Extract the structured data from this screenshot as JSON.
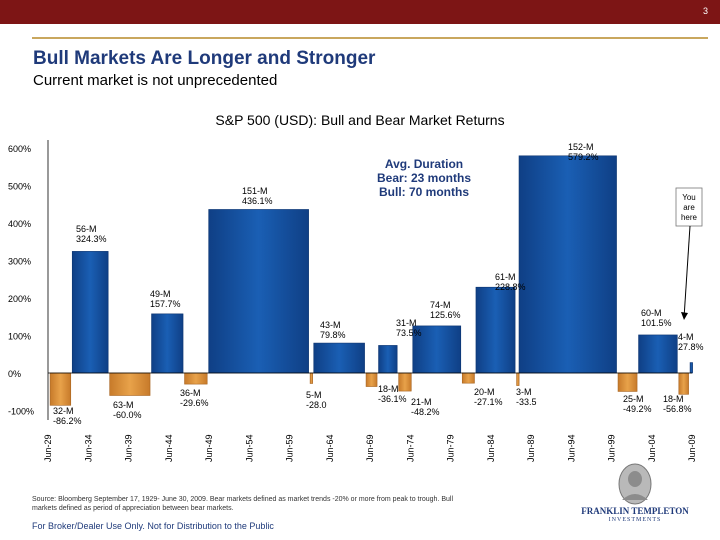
{
  "page_number": "3",
  "title": "Bull Markets Are Longer and Stronger",
  "subtitle": "Current market is not unprecedented",
  "source_note": "Source: Bloomberg September 17, 1929- June 30, 2009. Bear markets defined as market trends -20% or more from peak to trough. Bull markets defined as period of appreciation between bear markets.",
  "footer": "For Broker/Dealer Use Only. Not for Distribution to the Public",
  "logo": {
    "name": "FRANKLIN TEMPLETON",
    "sub": "INVESTMENTS"
  },
  "colors": {
    "bull": "#1a5fb4",
    "bear": "#e8a24a",
    "header": "#7d1515",
    "accent": "#c9a75e"
  },
  "chart_data": {
    "type": "bar",
    "title": "S&P 500 (USD): Bull and Bear Market Returns",
    "ylim": [
      -100,
      600
    ],
    "y_ticks": [
      -100,
      0,
      100,
      200,
      300,
      400,
      500,
      600
    ],
    "y_tick_labels": [
      "-100%",
      "0%",
      "100%",
      "200%",
      "300%",
      "400%",
      "500%",
      "600%"
    ],
    "x_ticks": [
      "Jun-29",
      "Jun-34",
      "Jun-39",
      "Jun-44",
      "Jun-49",
      "Jun-54",
      "Jun-59",
      "Jun-64",
      "Jun-69",
      "Jun-74",
      "Jun-79",
      "Jun-84",
      "Jun-89",
      "Jun-94",
      "Jun-99",
      "Jun-04",
      "Jun-09"
    ],
    "x_range": [
      1929.5,
      2009.5
    ],
    "avg_duration": {
      "line1": "Avg. Duration",
      "line2": "Bear: 23 months",
      "line3": "Bull: 70 months"
    },
    "you_are_here": [
      "You",
      "are",
      "here"
    ],
    "markets": [
      {
        "type": "bear",
        "start": 1929.7,
        "end": 1932.45,
        "value": -86.2,
        "months": "32-M",
        "pct": "-86.2%"
      },
      {
        "type": "bull",
        "start": 1932.45,
        "end": 1937.1,
        "value": 324.3,
        "months": "56-M",
        "pct": "324.3%"
      },
      {
        "type": "bear",
        "start": 1937.1,
        "end": 1942.3,
        "value": -60.0,
        "months": "63-M",
        "pct": "-60.0%"
      },
      {
        "type": "bull",
        "start": 1942.3,
        "end": 1946.4,
        "value": 157.7,
        "months": "49-M",
        "pct": "157.7%"
      },
      {
        "type": "bear",
        "start": 1946.4,
        "end": 1949.4,
        "value": -29.6,
        "months": "36-M",
        "pct": "-29.6%"
      },
      {
        "type": "bull",
        "start": 1949.4,
        "end": 1962.0,
        "value": 436.1,
        "months": "151-M",
        "pct": "436.1%"
      },
      {
        "type": "bear",
        "start": 1962.0,
        "end": 1962.45,
        "value": -28.0,
        "months": "5-M",
        "pct": "-28.0"
      },
      {
        "type": "bull",
        "start": 1962.45,
        "end": 1968.95,
        "value": 79.8,
        "months": "43-M",
        "pct": "79.8%"
      },
      {
        "type": "bear",
        "start": 1968.95,
        "end": 1970.5,
        "value": -36.1,
        "months": "18-M",
        "pct": "-36.1%"
      },
      {
        "type": "bull",
        "start": 1970.5,
        "end": 1973.0,
        "value": 73.5,
        "months": "31-M",
        "pct": "73.5%"
      },
      {
        "type": "bear",
        "start": 1973.0,
        "end": 1974.75,
        "value": -48.2,
        "months": "21-M",
        "pct": "-48.2%"
      },
      {
        "type": "bull",
        "start": 1974.75,
        "end": 1980.9,
        "value": 125.6,
        "months": "74-M",
        "pct": "125.6%"
      },
      {
        "type": "bear",
        "start": 1980.9,
        "end": 1982.6,
        "value": -27.1,
        "months": "20-M",
        "pct": "-27.1%"
      },
      {
        "type": "bull",
        "start": 1982.6,
        "end": 1987.65,
        "value": 228.8,
        "months": "61-M",
        "pct": "228.8%"
      },
      {
        "type": "bear",
        "start": 1987.65,
        "end": 1987.95,
        "value": -33.5,
        "months": "3-M",
        "pct": "-33.5"
      },
      {
        "type": "bull",
        "start": 1987.95,
        "end": 2000.25,
        "value": 579.2,
        "months": "152-M",
        "pct": "579.2%"
      },
      {
        "type": "bear",
        "start": 2000.25,
        "end": 2002.8,
        "value": -49.2,
        "months": "25-M",
        "pct": "-49.2%"
      },
      {
        "type": "bull",
        "start": 2002.8,
        "end": 2007.8,
        "value": 101.5,
        "months": "60-M",
        "pct": "101.5%"
      },
      {
        "type": "bear",
        "start": 2007.8,
        "end": 2009.2,
        "value": -56.8,
        "months": "18-M",
        "pct": "-56.8%"
      },
      {
        "type": "bull",
        "start": 2009.2,
        "end": 2009.5,
        "value": 27.8,
        "months": "4-M",
        "pct": "27.8%"
      }
    ]
  }
}
